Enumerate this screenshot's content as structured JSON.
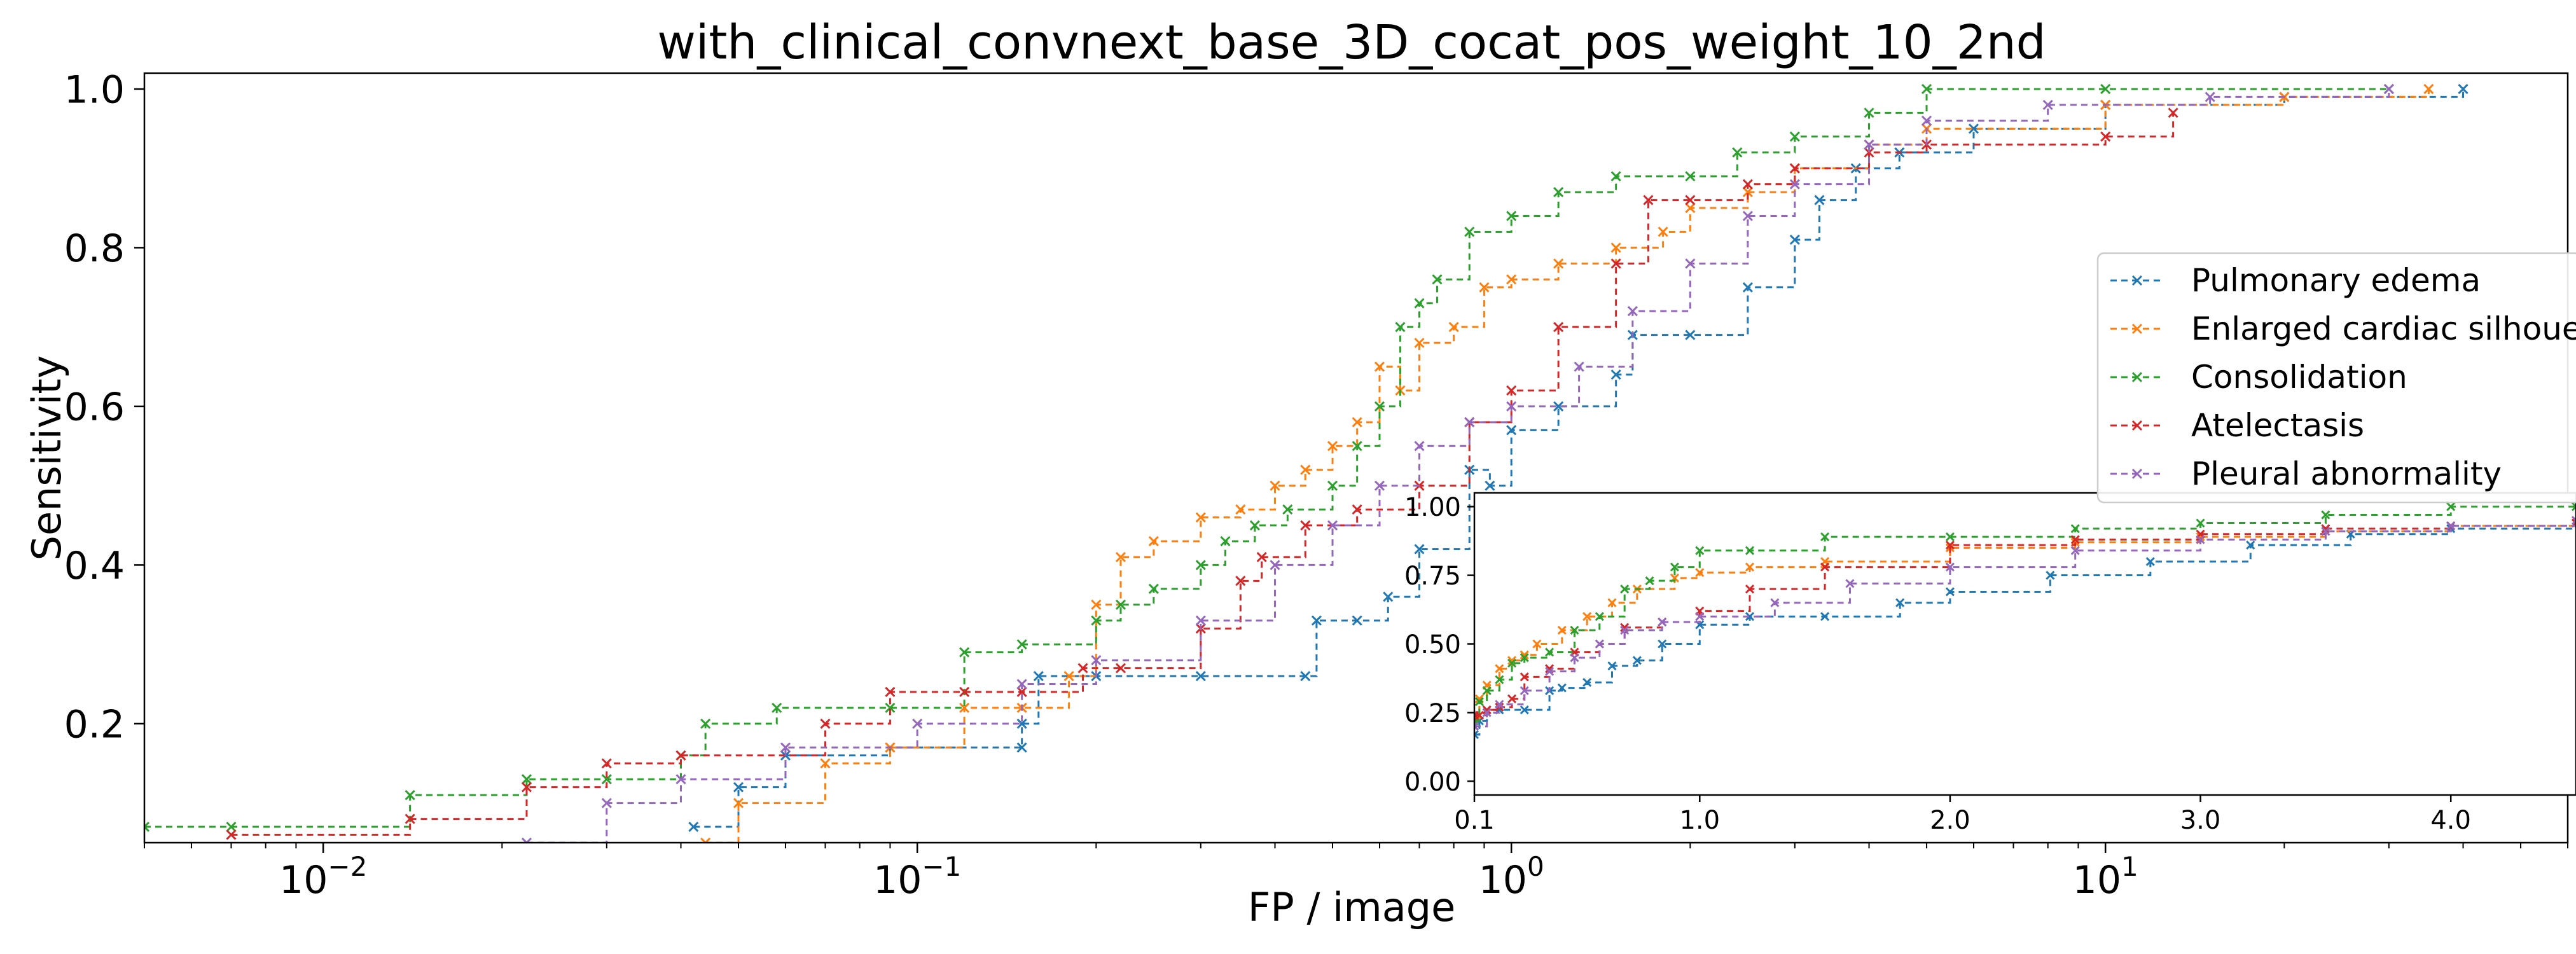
{
  "chart_data": [
    {
      "type": "line",
      "title": "with_clinical_convnext_base_3D_cocat_pos_weight_10_2nd",
      "xlabel": "FP / image",
      "ylabel": "Sensitivity",
      "xscale": "log",
      "xlim": [
        0.005,
        60
      ],
      "ylim": [
        0.05,
        1.02
      ],
      "x_ticks": [
        {
          "value": 0.01,
          "label": "10",
          "exp": "−2"
        },
        {
          "value": 0.1,
          "label": "10",
          "exp": "−1"
        },
        {
          "value": 1,
          "label": "10",
          "exp": "0"
        },
        {
          "value": 10,
          "label": "10",
          "exp": "1"
        }
      ],
      "y_ticks": [
        {
          "value": 0.2,
          "label": "0.2"
        },
        {
          "value": 0.4,
          "label": "0.4"
        },
        {
          "value": 0.6,
          "label": "0.6"
        },
        {
          "value": 0.8,
          "label": "0.8"
        },
        {
          "value": 1.0,
          "label": "1.0"
        }
      ],
      "grid": false,
      "legend": "right",
      "series": [
        {
          "name": "Pulmonary edema",
          "color": "#1f77b4",
          "x": [
            0.042,
            0.05,
            0.06,
            0.09,
            0.15,
            0.15,
            0.16,
            0.2,
            0.3,
            0.45,
            0.47,
            0.55,
            0.62,
            0.7,
            0.85,
            0.92,
            1.0,
            1.2,
            1.5,
            1.6,
            2.0,
            2.5,
            3.0,
            3.3,
            3.8,
            4.5,
            6.0,
            10.0,
            20.0,
            40.0
          ],
          "y": [
            0.07,
            0.12,
            0.16,
            0.17,
            0.17,
            0.2,
            0.26,
            0.26,
            0.26,
            0.26,
            0.33,
            0.33,
            0.36,
            0.42,
            0.52,
            0.5,
            0.57,
            0.6,
            0.64,
            0.69,
            0.69,
            0.75,
            0.81,
            0.86,
            0.9,
            0.92,
            0.95,
            0.98,
            0.99,
            1.0
          ]
        },
        {
          "name": "Enlarged cardiac silhouette",
          "color": "#ff7f0e",
          "x": [
            0.044,
            0.05,
            0.07,
            0.09,
            0.12,
            0.15,
            0.18,
            0.2,
            0.22,
            0.25,
            0.3,
            0.35,
            0.4,
            0.45,
            0.5,
            0.55,
            0.6,
            0.65,
            0.7,
            0.8,
            0.9,
            1.0,
            1.2,
            1.5,
            1.8,
            2.0,
            2.5,
            3.0,
            4.0,
            5.0,
            10.0,
            20.0,
            35.0
          ],
          "y": [
            0.05,
            0.1,
            0.15,
            0.17,
            0.22,
            0.22,
            0.26,
            0.35,
            0.41,
            0.43,
            0.46,
            0.47,
            0.5,
            0.52,
            0.55,
            0.58,
            0.65,
            0.62,
            0.68,
            0.7,
            0.75,
            0.76,
            0.78,
            0.8,
            0.82,
            0.85,
            0.87,
            0.9,
            0.93,
            0.95,
            0.98,
            0.99,
            1.0
          ]
        },
        {
          "name": "Consolidation",
          "color": "#2ca02c",
          "x": [
            0.005,
            0.007,
            0.014,
            0.022,
            0.03,
            0.04,
            0.044,
            0.058,
            0.09,
            0.12,
            0.15,
            0.2,
            0.22,
            0.25,
            0.3,
            0.33,
            0.37,
            0.42,
            0.5,
            0.55,
            0.6,
            0.65,
            0.7,
            0.75,
            0.85,
            1.0,
            1.2,
            1.5,
            2.0,
            2.4,
            3.0,
            4.0,
            5.0,
            10.0,
            30.0
          ],
          "y": [
            0.07,
            0.07,
            0.11,
            0.13,
            0.13,
            0.16,
            0.2,
            0.22,
            0.22,
            0.29,
            0.3,
            0.33,
            0.35,
            0.37,
            0.4,
            0.43,
            0.45,
            0.47,
            0.5,
            0.55,
            0.6,
            0.7,
            0.73,
            0.76,
            0.82,
            0.84,
            0.87,
            0.89,
            0.89,
            0.92,
            0.94,
            0.97,
            1.0,
            1.0,
            1.0
          ]
        },
        {
          "name": "Atelectasis",
          "color": "#d62728",
          "x": [
            0.007,
            0.014,
            0.022,
            0.03,
            0.04,
            0.07,
            0.09,
            0.12,
            0.15,
            0.19,
            0.22,
            0.3,
            0.35,
            0.38,
            0.45,
            0.55,
            0.7,
            0.85,
            1.0,
            1.2,
            1.5,
            1.7,
            2.0,
            2.5,
            3.0,
            4.0,
            5.0,
            10.0,
            13.0
          ],
          "y": [
            0.06,
            0.08,
            0.12,
            0.15,
            0.16,
            0.2,
            0.24,
            0.24,
            0.24,
            0.27,
            0.27,
            0.32,
            0.38,
            0.41,
            0.45,
            0.47,
            0.5,
            0.58,
            0.62,
            0.7,
            0.78,
            0.86,
            0.86,
            0.88,
            0.9,
            0.92,
            0.93,
            0.94,
            0.97
          ]
        },
        {
          "name": "Pleural abnormality",
          "color": "#9467bd",
          "x": [
            0.022,
            0.03,
            0.04,
            0.06,
            0.1,
            0.15,
            0.2,
            0.3,
            0.4,
            0.5,
            0.6,
            0.7,
            0.85,
            1.0,
            1.3,
            1.6,
            2.0,
            2.5,
            3.0,
            4.0,
            5.0,
            8.0,
            15.0,
            30.0
          ],
          "y": [
            0.05,
            0.1,
            0.13,
            0.17,
            0.2,
            0.25,
            0.28,
            0.33,
            0.4,
            0.45,
            0.5,
            0.55,
            0.58,
            0.6,
            0.65,
            0.72,
            0.78,
            0.84,
            0.88,
            0.93,
            0.96,
            0.98,
            0.99,
            1.0
          ]
        }
      ]
    },
    {
      "type": "line",
      "title": "",
      "xlabel": "",
      "ylabel": "",
      "xlim": [
        0.1,
        4.5
      ],
      "ylim": [
        -0.05,
        1.05
      ],
      "x_ticks": [
        {
          "value": 0.1,
          "label": "0.1"
        },
        {
          "value": 1.0,
          "label": "1.0"
        },
        {
          "value": 2.0,
          "label": "2.0"
        },
        {
          "value": 3.0,
          "label": "3.0"
        },
        {
          "value": 4.0,
          "label": "4.0"
        }
      ],
      "y_ticks": [
        {
          "value": 0.0,
          "label": "0.00"
        },
        {
          "value": 0.25,
          "label": "0.25"
        },
        {
          "value": 0.5,
          "label": "0.50"
        },
        {
          "value": 0.75,
          "label": "0.75"
        },
        {
          "value": 1.0,
          "label": "1.00"
        }
      ],
      "series": [
        {
          "name": "Pulmonary edema",
          "color": "#1f77b4",
          "x": [
            0.1,
            0.12,
            0.15,
            0.2,
            0.3,
            0.4,
            0.45,
            0.55,
            0.65,
            0.75,
            0.85,
            1.0,
            1.2,
            1.5,
            1.8,
            2.0,
            2.4,
            2.8,
            3.2,
            3.6,
            4.0,
            4.5
          ],
          "y": [
            0.17,
            0.22,
            0.26,
            0.26,
            0.26,
            0.33,
            0.34,
            0.36,
            0.42,
            0.44,
            0.5,
            0.57,
            0.6,
            0.6,
            0.65,
            0.69,
            0.75,
            0.8,
            0.86,
            0.9,
            0.92,
            0.94
          ]
        },
        {
          "name": "Enlarged cardiac silhouette",
          "color": "#ff7f0e",
          "x": [
            0.1,
            0.12,
            0.15,
            0.2,
            0.25,
            0.3,
            0.35,
            0.45,
            0.55,
            0.65,
            0.75,
            0.9,
            1.0,
            1.2,
            1.5,
            2.0,
            2.5,
            3.0,
            3.5,
            4.0,
            4.5
          ],
          "y": [
            0.23,
            0.3,
            0.35,
            0.41,
            0.44,
            0.46,
            0.5,
            0.55,
            0.6,
            0.65,
            0.7,
            0.74,
            0.76,
            0.78,
            0.8,
            0.85,
            0.87,
            0.89,
            0.91,
            0.93,
            0.94
          ]
        },
        {
          "name": "Consolidation",
          "color": "#2ca02c",
          "x": [
            0.1,
            0.12,
            0.15,
            0.2,
            0.25,
            0.3,
            0.4,
            0.5,
            0.6,
            0.7,
            0.8,
            0.9,
            1.0,
            1.2,
            1.5,
            2.0,
            2.5,
            3.0,
            3.5,
            4.0,
            4.5
          ],
          "y": [
            0.22,
            0.29,
            0.33,
            0.37,
            0.43,
            0.45,
            0.47,
            0.55,
            0.6,
            0.7,
            0.73,
            0.78,
            0.84,
            0.84,
            0.89,
            0.89,
            0.92,
            0.94,
            0.97,
            1.0,
            1.0
          ]
        },
        {
          "name": "Atelectasis",
          "color": "#d62728",
          "x": [
            0.1,
            0.12,
            0.15,
            0.2,
            0.25,
            0.3,
            0.4,
            0.5,
            0.6,
            0.7,
            0.85,
            1.0,
            1.2,
            1.5,
            2.0,
            2.5,
            3.0,
            3.5,
            4.0,
            4.5
          ],
          "y": [
            0.24,
            0.24,
            0.26,
            0.27,
            0.3,
            0.38,
            0.41,
            0.47,
            0.5,
            0.56,
            0.58,
            0.62,
            0.7,
            0.78,
            0.86,
            0.88,
            0.9,
            0.92,
            0.93,
            0.94
          ]
        },
        {
          "name": "Pleural abnormality",
          "color": "#9467bd",
          "x": [
            0.1,
            0.15,
            0.2,
            0.3,
            0.4,
            0.5,
            0.6,
            0.7,
            0.85,
            1.0,
            1.3,
            1.6,
            2.0,
            2.5,
            3.0,
            3.5,
            4.0,
            4.5
          ],
          "y": [
            0.2,
            0.25,
            0.28,
            0.33,
            0.4,
            0.45,
            0.5,
            0.55,
            0.58,
            0.6,
            0.65,
            0.72,
            0.78,
            0.84,
            0.88,
            0.91,
            0.93,
            0.95
          ]
        }
      ]
    }
  ]
}
